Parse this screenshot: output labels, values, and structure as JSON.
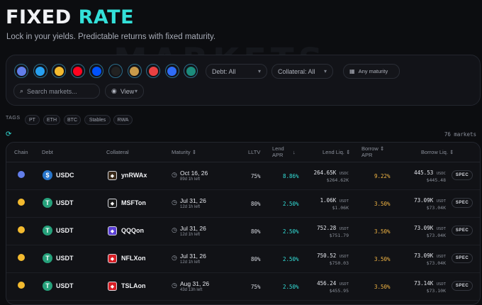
{
  "header": {
    "title_1": "FIXED",
    "title_2": "RATE",
    "subtitle": "Lock in your yields. Predictable returns with fixed maturity.",
    "watermark": "MARKETS"
  },
  "chains": [
    {
      "name": "ethereum-icon",
      "color": "#627eea"
    },
    {
      "name": "arbitrum-icon",
      "color": "#28a0f0"
    },
    {
      "name": "bnb-icon",
      "color": "#f3ba2f"
    },
    {
      "name": "optimism-icon",
      "color": "#ff0420"
    },
    {
      "name": "base-icon",
      "color": "#0052ff"
    },
    {
      "name": "x-chain-icon",
      "color": "#222222"
    },
    {
      "name": "coin-icon",
      "color": "#c99a4a"
    },
    {
      "name": "avalanche-icon",
      "color": "#e84142"
    },
    {
      "name": "sui-icon",
      "color": "#2f6cf6"
    },
    {
      "name": "hyper-icon",
      "color": "#1c8c7c"
    }
  ],
  "filters": {
    "debt": "Debt: All",
    "collateral": "Collateral: All",
    "maturity": "Any maturity",
    "search_placeholder": "Search markets...",
    "view": "View"
  },
  "tags": {
    "label": "TAGS",
    "items": [
      "PT",
      "ETH",
      "BTC",
      "Stables",
      "RWA"
    ]
  },
  "count": "76 markets",
  "table": {
    "headers": {
      "chain": "Chain",
      "debt": "Debt",
      "collateral": "Collateral",
      "maturity": "Maturity",
      "lltv": "LLTV",
      "lend_apr_1": "Lend",
      "lend_apr_2": "APR",
      "lend_liq": "Lend Liq.",
      "borrow_apr_1": "Borrow",
      "borrow_apr_2": "APR",
      "borrow_liq": "Borrow Liq."
    },
    "rows": [
      {
        "chain_color": "#627eea",
        "debt": "USDC",
        "debt_color": "#2775ca",
        "collateral": "ynRWAx",
        "coll_color": "#3a2a1a",
        "maturity": "Oct 16, 26",
        "left": "89d 1h left",
        "lltv": "75%",
        "lend_apr": "8.86%",
        "lend_liq": "264.65K",
        "lend_unit": "USDC",
        "lend_usd": "$264.62K",
        "borrow_apr": "9.22%",
        "borrow_liq": "445.53",
        "borrow_unit": "USDC",
        "borrow_usd": "$445.48",
        "spec": "SPEC"
      },
      {
        "chain_color": "#f3ba2f",
        "debt": "USDT",
        "debt_color": "#26a17b",
        "collateral": "MSFTon",
        "coll_color": "#1a1a1a",
        "maturity": "Jul 31, 26",
        "left": "12d 1h left",
        "lltv": "80%",
        "lend_apr": "2.50%",
        "lend_liq": "1.06K",
        "lend_unit": "USDT",
        "lend_usd": "$1.06K",
        "borrow_apr": "3.50%",
        "borrow_liq": "73.09K",
        "borrow_unit": "USDT",
        "borrow_usd": "$73.04K",
        "spec": "SPEC"
      },
      {
        "chain_color": "#f3ba2f",
        "debt": "USDT",
        "debt_color": "#26a17b",
        "collateral": "QQQon",
        "coll_color": "#5b3fd6",
        "maturity": "Jul 31, 26",
        "left": "12d 1h left",
        "lltv": "80%",
        "lend_apr": "2.50%",
        "lend_liq": "752.28",
        "lend_unit": "USDT",
        "lend_usd": "$751.79",
        "borrow_apr": "3.50%",
        "borrow_liq": "73.09K",
        "borrow_unit": "USDT",
        "borrow_usd": "$73.04K",
        "spec": "SPEC"
      },
      {
        "chain_color": "#f3ba2f",
        "debt": "USDT",
        "debt_color": "#26a17b",
        "collateral": "NFLXon",
        "coll_color": "#d81f26",
        "maturity": "Jul 31, 26",
        "left": "12d 1h left",
        "lltv": "80%",
        "lend_apr": "2.50%",
        "lend_liq": "750.52",
        "lend_unit": "USDT",
        "lend_usd": "$750.03",
        "borrow_apr": "3.50%",
        "borrow_liq": "73.09K",
        "borrow_unit": "USDT",
        "borrow_usd": "$73.04K",
        "spec": "SPEC"
      },
      {
        "chain_color": "#f3ba2f",
        "debt": "USDT",
        "debt_color": "#26a17b",
        "collateral": "TSLAon",
        "coll_color": "#d81f26",
        "maturity": "Aug 31, 26",
        "left": "43d 13h left",
        "lltv": "75%",
        "lend_apr": "2.50%",
        "lend_liq": "456.24",
        "lend_unit": "USDT",
        "lend_usd": "$455.95",
        "borrow_apr": "3.50%",
        "borrow_liq": "73.14K",
        "borrow_unit": "USDT",
        "borrow_usd": "$73.10K",
        "spec": "SPEC"
      }
    ]
  }
}
